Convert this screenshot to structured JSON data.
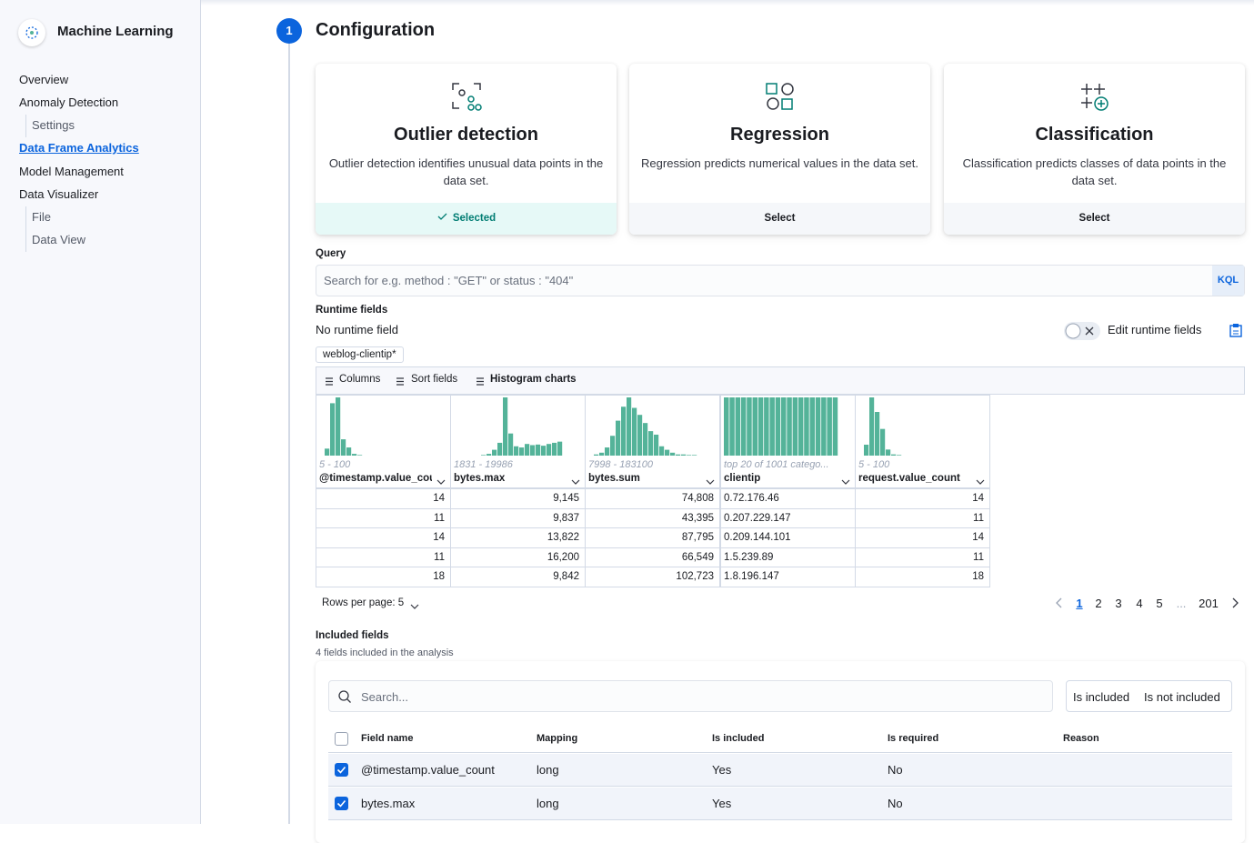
{
  "sidebar": {
    "title": "Machine Learning",
    "nav": [
      {
        "label": "Overview",
        "level": 0,
        "active": false
      },
      {
        "label": "Anomaly Detection",
        "level": 0,
        "active": false
      },
      {
        "label": "Settings",
        "level": 1,
        "active": false
      },
      {
        "label": "Data Frame Analytics",
        "level": 0,
        "active": true
      },
      {
        "label": "Model Management",
        "level": 0,
        "active": false
      },
      {
        "label": "Data Visualizer",
        "level": 0,
        "active": false
      },
      {
        "label": "File",
        "level": 1,
        "active": false
      },
      {
        "label": "Data View",
        "level": 1,
        "active": false
      }
    ]
  },
  "step": {
    "number": "1",
    "title": "Configuration"
  },
  "cards": [
    {
      "title": "Outlier detection",
      "description": "Outlier detection identifies unusual data points in the data set.",
      "action": "Selected",
      "selected": true
    },
    {
      "title": "Regression",
      "description": "Regression predicts numerical values in the data set.",
      "action": "Select",
      "selected": false
    },
    {
      "title": "Classification",
      "description": "Classification predicts classes of data points in the data set.",
      "action": "Select",
      "selected": false
    }
  ],
  "query": {
    "label": "Query",
    "placeholder": "Search for e.g. method : \"GET\" or status : \"404\"",
    "badge": "KQL"
  },
  "runtime": {
    "label": "Runtime fields",
    "value": "No runtime field",
    "toggle_label": "Edit runtime fields"
  },
  "index_badge": "weblog-clientip*",
  "toolbar": [
    "Columns",
    "Sort fields",
    "Histogram charts"
  ],
  "grid": {
    "columns": [
      {
        "name": "@timestamp.value_count",
        "range": "5 - 100",
        "numeric": true,
        "histogram": [
          0,
          12,
          90,
          100,
          28,
          14,
          3,
          1,
          0,
          0,
          0,
          0,
          0,
          0,
          0,
          0,
          0,
          0,
          0,
          0
        ]
      },
      {
        "name": "bytes.max",
        "range": "1831 - 19986",
        "numeric": true,
        "histogram": [
          0,
          0,
          0,
          0,
          0,
          1,
          3,
          10,
          22,
          100,
          38,
          16,
          14,
          20,
          18,
          19,
          17,
          20,
          22,
          24
        ]
      },
      {
        "name": "bytes.sum",
        "range": "7998 - 183100",
        "numeric": true,
        "histogram": [
          0,
          2,
          5,
          14,
          34,
          60,
          84,
          100,
          82,
          70,
          56,
          42,
          36,
          16,
          10,
          5,
          2,
          2,
          1,
          1
        ]
      },
      {
        "name": "clientip",
        "range": "top 20 of 1001 catego...",
        "numeric": false,
        "histogram": [
          100,
          100,
          100,
          100,
          100,
          100,
          100,
          100,
          100,
          100,
          100,
          100,
          100,
          100,
          100,
          100,
          100,
          100,
          100,
          100
        ]
      },
      {
        "name": "request.value_count",
        "range": "5 - 100",
        "numeric": true,
        "histogram": [
          0,
          18,
          96,
          72,
          44,
          10,
          2,
          1,
          0,
          0,
          0,
          0,
          0,
          0,
          0,
          0,
          0,
          0,
          0,
          0
        ]
      }
    ],
    "rows": [
      [
        "14",
        "9,145",
        "74,808",
        "0.72.176.46",
        "14"
      ],
      [
        "11",
        "9,837",
        "43,395",
        "0.207.229.147",
        "11"
      ],
      [
        "14",
        "13,822",
        "87,795",
        "0.209.144.101",
        "14"
      ],
      [
        "11",
        "16,200",
        "66,549",
        "1.5.239.89",
        "11"
      ],
      [
        "18",
        "9,842",
        "102,723",
        "1.8.196.147",
        "18"
      ]
    ]
  },
  "pagination": {
    "rows_per_page": "Rows per page: 5",
    "pages": [
      "1",
      "2",
      "3",
      "4",
      "5",
      "...",
      "201"
    ],
    "active": 0
  },
  "included": {
    "title": "Included fields",
    "subtitle": "4 fields included in the analysis",
    "search_placeholder": "Search...",
    "filters": [
      "Is included",
      "Is not included"
    ],
    "headers": [
      "Field name",
      "Mapping",
      "Is included",
      "Is required",
      "Reason"
    ],
    "rows": [
      {
        "checked": true,
        "cells": [
          "@timestamp.value_count",
          "long",
          "Yes",
          "No",
          ""
        ]
      },
      {
        "checked": true,
        "cells": [
          "bytes.max",
          "long",
          "Yes",
          "No",
          ""
        ]
      }
    ]
  }
}
